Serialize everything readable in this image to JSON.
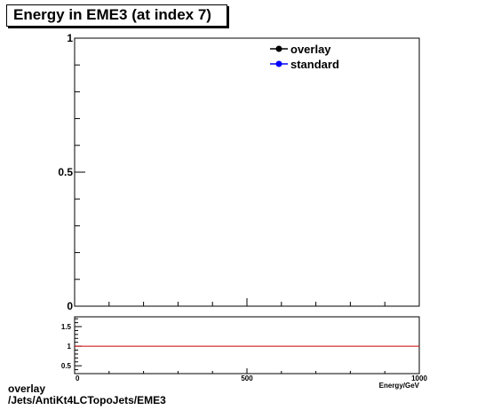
{
  "title": "Energy in EME3 (at index 7)",
  "footer": {
    "line1": "overlay",
    "line2": "/Jets/AntiKt4LCTopoJets/EME3"
  },
  "colors": {
    "overlay": "#000000",
    "standard": "#0000ff",
    "ratio_line": "#cc0000"
  },
  "chart_data": [
    {
      "type": "line",
      "title": "Energy in EME3 (at index 7)",
      "xlabel": "Energy/GeV",
      "ylabel": "",
      "xlim": [
        0,
        1000
      ],
      "ylim": [
        0,
        1
      ],
      "grid": false,
      "legend_position": "top-right",
      "x_tick_labels": [
        "0",
        "500",
        "1000"
      ],
      "y_tick_labels": [
        "0",
        "0.5",
        "1"
      ],
      "series": [
        {
          "name": "overlay",
          "marker": "circle",
          "color": "#000000",
          "x": [],
          "y": []
        },
        {
          "name": "standard",
          "marker": "circle",
          "color": "#0000ff",
          "x": [],
          "y": []
        }
      ]
    },
    {
      "type": "line",
      "title": "",
      "xlabel": "Energy/GeV",
      "ylabel": "",
      "xlim": [
        0,
        1000
      ],
      "ylim": [
        0.3,
        1.75
      ],
      "grid": false,
      "y_tick_labels": [
        "0.5",
        "1",
        "1.5"
      ],
      "reference_line": {
        "y": 1,
        "color": "#cc0000"
      }
    }
  ]
}
